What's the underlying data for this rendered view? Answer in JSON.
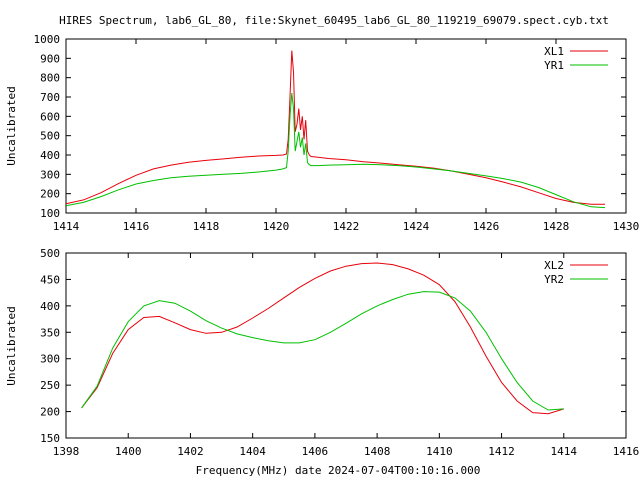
{
  "figure": {
    "title": "HIRES Spectrum, lab6_GL_80, file:Skynet_60495_lab6_GL_80_119219_69079.spect.cyb.txt",
    "xlabel": "Frequency(MHz) date 2024-07-04T00:10:16.000"
  },
  "colors": {
    "red": "#e8000b",
    "green": "#00c000"
  },
  "chart_data": [
    {
      "type": "line",
      "ylabel": "Uncalibrated",
      "xlim": [
        1414,
        1430
      ],
      "ylim": [
        100,
        1000
      ],
      "xticks": [
        1414,
        1416,
        1418,
        1420,
        1422,
        1424,
        1426,
        1428,
        1430
      ],
      "yticks": [
        100,
        200,
        300,
        400,
        500,
        600,
        700,
        800,
        900,
        1000
      ],
      "grid": false,
      "legend": "top-right",
      "series": [
        {
          "name": "XL1",
          "color": "#e8000b",
          "x": [
            1414.0,
            1414.5,
            1415.0,
            1415.5,
            1416.0,
            1416.5,
            1417.0,
            1417.5,
            1418.0,
            1418.5,
            1419.0,
            1419.5,
            1420.0,
            1420.2,
            1420.3,
            1420.35,
            1420.4,
            1420.45,
            1420.5,
            1420.55,
            1420.6,
            1420.65,
            1420.7,
            1420.75,
            1420.8,
            1420.85,
            1420.9,
            1420.95,
            1421.0,
            1421.2,
            1421.5,
            1422.0,
            1422.5,
            1423.0,
            1423.5,
            1424.0,
            1424.5,
            1425.0,
            1425.5,
            1426.0,
            1426.5,
            1427.0,
            1427.5,
            1428.0,
            1428.5,
            1429.0,
            1429.4
          ],
          "y": [
            148,
            168,
            205,
            252,
            295,
            328,
            348,
            362,
            372,
            380,
            388,
            395,
            398,
            400,
            405,
            480,
            700,
            940,
            830,
            520,
            560,
            640,
            530,
            600,
            480,
            580,
            420,
            400,
            392,
            388,
            382,
            375,
            365,
            358,
            350,
            342,
            332,
            318,
            300,
            282,
            260,
            235,
            205,
            175,
            155,
            145,
            145
          ]
        },
        {
          "name": "YR1",
          "color": "#00c000",
          "x": [
            1414.0,
            1414.5,
            1415.0,
            1415.5,
            1416.0,
            1416.5,
            1417.0,
            1417.5,
            1418.0,
            1418.5,
            1419.0,
            1419.5,
            1420.0,
            1420.2,
            1420.3,
            1420.35,
            1420.4,
            1420.45,
            1420.5,
            1420.55,
            1420.6,
            1420.65,
            1420.7,
            1420.75,
            1420.8,
            1420.85,
            1420.9,
            1420.95,
            1421.0,
            1421.2,
            1421.5,
            1422.0,
            1422.5,
            1423.0,
            1423.5,
            1424.0,
            1424.5,
            1425.0,
            1425.5,
            1426.0,
            1426.5,
            1427.0,
            1427.5,
            1428.0,
            1428.5,
            1429.0,
            1429.4
          ],
          "y": [
            138,
            155,
            185,
            220,
            250,
            268,
            282,
            290,
            295,
            300,
            305,
            312,
            322,
            328,
            335,
            420,
            600,
            720,
            640,
            420,
            470,
            520,
            440,
            490,
            400,
            460,
            360,
            350,
            345,
            345,
            348,
            350,
            352,
            350,
            345,
            338,
            328,
            318,
            305,
            292,
            278,
            260,
            232,
            195,
            158,
            132,
            128
          ]
        }
      ]
    },
    {
      "type": "line",
      "ylabel": "Uncalibrated",
      "xlim": [
        1398,
        1416
      ],
      "ylim": [
        150,
        500
      ],
      "xticks": [
        1398,
        1400,
        1402,
        1404,
        1406,
        1408,
        1410,
        1412,
        1414,
        1416
      ],
      "yticks": [
        150,
        200,
        250,
        300,
        350,
        400,
        450,
        500
      ],
      "grid": false,
      "legend": "top-right",
      "series": [
        {
          "name": "XL2",
          "color": "#e8000b",
          "x": [
            1398.5,
            1399.0,
            1399.5,
            1400.0,
            1400.5,
            1401.0,
            1401.5,
            1402.0,
            1402.5,
            1403.0,
            1403.5,
            1404.0,
            1404.5,
            1405.0,
            1405.5,
            1406.0,
            1406.5,
            1407.0,
            1407.5,
            1408.0,
            1408.5,
            1409.0,
            1409.5,
            1410.0,
            1410.5,
            1411.0,
            1411.5,
            1412.0,
            1412.5,
            1413.0,
            1413.5,
            1414.0
          ],
          "y": [
            207,
            245,
            310,
            355,
            378,
            380,
            368,
            355,
            348,
            350,
            360,
            377,
            395,
            415,
            435,
            452,
            466,
            475,
            480,
            481,
            478,
            470,
            458,
            440,
            408,
            360,
            305,
            255,
            220,
            198,
            196,
            205
          ]
        },
        {
          "name": "YR2",
          "color": "#00c000",
          "x": [
            1398.5,
            1399.0,
            1399.5,
            1400.0,
            1400.5,
            1401.0,
            1401.5,
            1402.0,
            1402.5,
            1403.0,
            1403.5,
            1404.0,
            1404.5,
            1405.0,
            1405.5,
            1406.0,
            1406.5,
            1407.0,
            1407.5,
            1408.0,
            1408.5,
            1409.0,
            1409.5,
            1410.0,
            1410.5,
            1411.0,
            1411.5,
            1412.0,
            1412.5,
            1413.0,
            1413.5,
            1414.0
          ],
          "y": [
            207,
            248,
            320,
            370,
            400,
            410,
            405,
            390,
            372,
            358,
            347,
            340,
            334,
            330,
            330,
            336,
            350,
            367,
            385,
            400,
            412,
            422,
            427,
            426,
            415,
            390,
            350,
            300,
            255,
            220,
            203,
            205
          ]
        }
      ]
    }
  ]
}
